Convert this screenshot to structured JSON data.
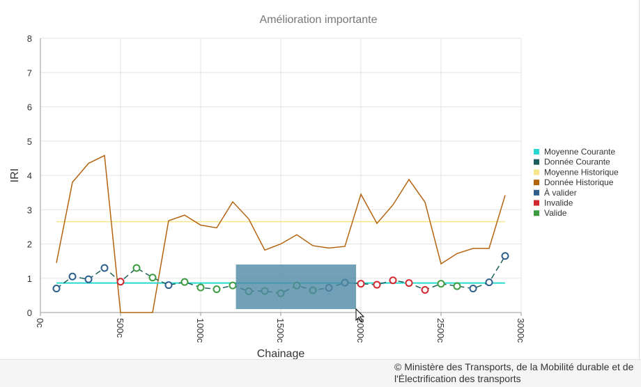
{
  "chart_data": {
    "type": "line",
    "title": "Amélioration importante",
    "xlabel": "Chainage",
    "ylabel": "IRI",
    "xlim": [
      0,
      3000
    ],
    "ylim": [
      0,
      8
    ],
    "xticks": [
      "0c",
      "500c",
      "1000c",
      "1500c",
      "2000c",
      "2500c",
      "3000c"
    ],
    "xtick_values": [
      0,
      500,
      1000,
      1500,
      2000,
      2500,
      3000
    ],
    "yticks": [
      0,
      1,
      2,
      3,
      4,
      5,
      6,
      7,
      8
    ],
    "grid": true,
    "legend_position": "right",
    "colors": {
      "moyenne_courante": "#29d9d0",
      "donnee_courante": "#1b5e5a",
      "moyenne_historique": "#f5e68c",
      "donnee_historique": "#b5620f",
      "a_valider": "#2d5f8c",
      "invalide": "#d0282e",
      "valide": "#3c9a40",
      "selection": "#4f88a4"
    },
    "legend": [
      {
        "key": "moyenne_courante",
        "label": "Moyenne Courante"
      },
      {
        "key": "donnee_courante",
        "label": "Donnée Courante"
      },
      {
        "key": "moyenne_historique",
        "label": "Moyenne Historique"
      },
      {
        "key": "donnee_historique",
        "label": "Donnée Historique"
      },
      {
        "key": "a_valider",
        "label": "À valider"
      },
      {
        "key": "invalide",
        "label": "Invalide"
      },
      {
        "key": "valide",
        "label": "Valide"
      }
    ],
    "x": [
      100,
      200,
      300,
      400,
      500,
      600,
      700,
      800,
      900,
      1000,
      1100,
      1200,
      1300,
      1400,
      1500,
      1600,
      1700,
      1800,
      1900,
      2000,
      2100,
      2200,
      2300,
      2400,
      2500,
      2600,
      2700,
      2800,
      2900
    ],
    "donnee_courante": [
      0.7,
      1.05,
      0.97,
      1.3,
      0.9,
      1.3,
      1.02,
      0.8,
      0.89,
      0.73,
      0.68,
      0.79,
      0.62,
      0.63,
      0.56,
      0.79,
      0.65,
      0.72,
      0.87,
      0.84,
      0.81,
      0.94,
      0.86,
      0.66,
      0.84,
      0.77,
      0.7,
      0.88,
      1.65
    ],
    "status": [
      "a_valider",
      "a_valider",
      "a_valider",
      "a_valider",
      "invalide",
      "valide",
      "valide",
      "a_valider",
      "valide",
      "valide",
      "valide",
      "valide",
      "valide",
      "valide",
      "valide",
      "valide",
      "valide",
      "a_valider",
      "a_valider",
      "invalide",
      "invalide",
      "invalide",
      "invalide",
      "invalide",
      "valide",
      "valide",
      "a_valider",
      "a_valider",
      "a_valider"
    ],
    "donnee_historique": [
      1.45,
      3.8,
      4.35,
      4.58,
      0,
      0,
      0,
      2.68,
      2.84,
      2.55,
      2.47,
      3.23,
      2.73,
      1.82,
      2.0,
      2.27,
      1.95,
      1.88,
      1.93,
      3.45,
      2.6,
      3.14,
      3.88,
      3.22,
      1.42,
      1.72,
      1.87,
      1.87,
      3.42
    ],
    "moyenne_courante": 0.86,
    "moyenne_historique": 2.65,
    "selection_range": {
      "x": [
        1220,
        1970
      ],
      "y": [
        0.1,
        1.4
      ]
    }
  },
  "footer": {
    "copyright": "© Ministère des Transports, de la Mobilité durable et de l'Électrification des transports"
  }
}
